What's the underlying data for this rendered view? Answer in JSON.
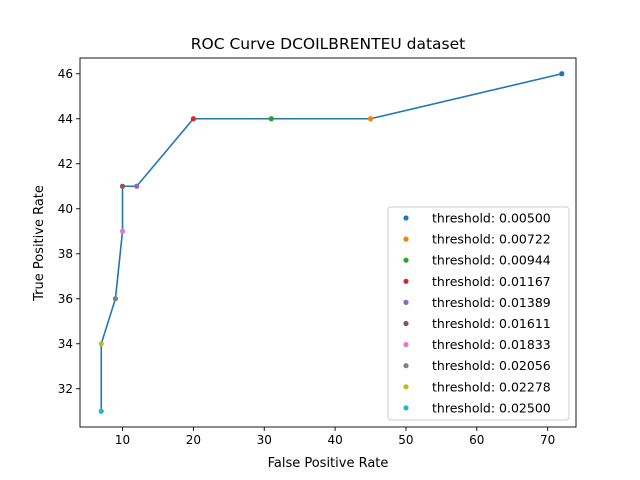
{
  "chart_data": {
    "type": "line",
    "title": "ROC Curve DCOILBRENTEU dataset",
    "xlabel": "False Positive Rate",
    "ylabel": "True Positive Rate",
    "xlim": [
      4,
      74
    ],
    "ylim": [
      30.3,
      46.7
    ],
    "xticks": [
      10,
      20,
      30,
      40,
      50,
      60,
      70
    ],
    "yticks": [
      32,
      34,
      36,
      38,
      40,
      42,
      44,
      46
    ],
    "grid": false,
    "legend_position": "lower-right",
    "line_color": "#1f77b4",
    "points": [
      {
        "x": 72,
        "y": 46,
        "name": "threshold: 0.00500",
        "color": "#1f77b4"
      },
      {
        "x": 45,
        "y": 44,
        "name": "threshold: 0.00722",
        "color": "#ff7f0e"
      },
      {
        "x": 31,
        "y": 44,
        "name": "threshold: 0.00944",
        "color": "#2ca02c"
      },
      {
        "x": 20,
        "y": 44,
        "name": "threshold: 0.01167",
        "color": "#d62728"
      },
      {
        "x": 12,
        "y": 41,
        "name": "threshold: 0.01389",
        "color": "#9467bd"
      },
      {
        "x": 10,
        "y": 41,
        "name": "threshold: 0.01611",
        "color": "#8c564b"
      },
      {
        "x": 10,
        "y": 39,
        "name": "threshold: 0.01833",
        "color": "#e377c2"
      },
      {
        "x": 9,
        "y": 36,
        "name": "threshold: 0.02056",
        "color": "#7f7f7f"
      },
      {
        "x": 7,
        "y": 34,
        "name": "threshold: 0.02278",
        "color": "#bcbd22"
      },
      {
        "x": 7,
        "y": 31,
        "name": "threshold: 0.02500",
        "color": "#17becf"
      }
    ]
  }
}
